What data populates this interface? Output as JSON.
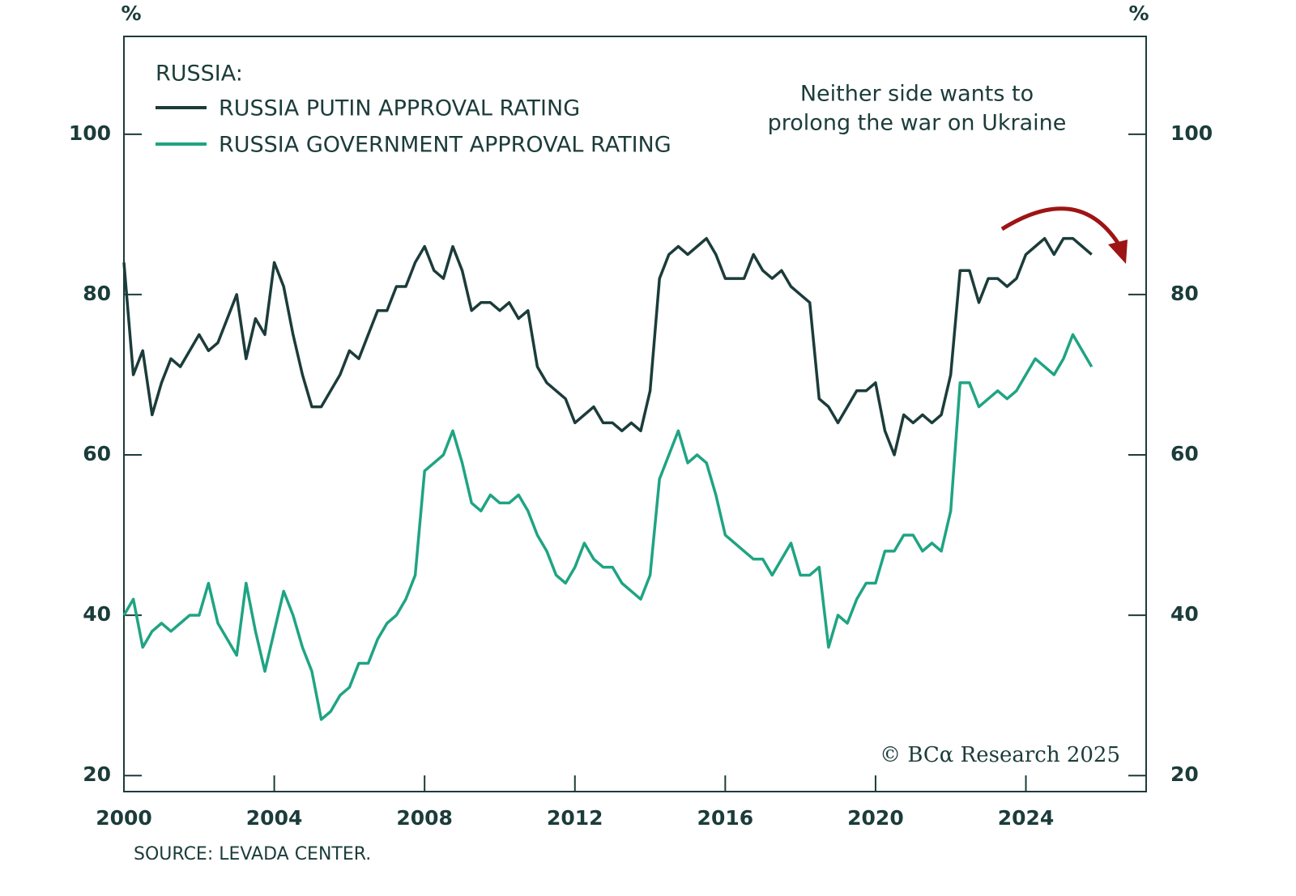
{
  "chart_data": {
    "type": "line",
    "ylabel": "%",
    "y2label": "%",
    "legend_title": "RUSSIA:",
    "annotation": [
      "Neither side wants to",
      "prolong the war on Ukraine"
    ],
    "annotation_color": "#9e1414",
    "watermark": "© BCα Research 2025",
    "source": "SOURCE: LEVADA CENTER.",
    "xlim": [
      2000,
      2027.2
    ],
    "xticks": [
      2000,
      2004,
      2008,
      2012,
      2016,
      2020,
      2024
    ],
    "ylim": [
      18,
      112.2
    ],
    "yticks": [
      20,
      40,
      60,
      80,
      100
    ],
    "y2lim": [
      18,
      112.2
    ],
    "y2ticks": [
      20,
      40,
      60,
      80,
      100
    ],
    "x": [
      2000,
      2000.25,
      2000.5,
      2000.75,
      2001,
      2001.25,
      2001.5,
      2001.75,
      2002,
      2002.25,
      2002.5,
      2002.75,
      2003,
      2003.25,
      2003.5,
      2003.75,
      2004,
      2004.25,
      2004.5,
      2004.75,
      2005,
      2005.25,
      2005.5,
      2005.75,
      2006,
      2006.25,
      2006.5,
      2006.75,
      2007,
      2007.25,
      2007.5,
      2007.75,
      2008,
      2008.25,
      2008.5,
      2008.75,
      2009,
      2009.25,
      2009.5,
      2009.75,
      2010,
      2010.25,
      2010.5,
      2010.75,
      2011,
      2011.25,
      2011.5,
      2011.75,
      2012,
      2012.25,
      2012.5,
      2012.75,
      2013,
      2013.25,
      2013.5,
      2013.75,
      2014,
      2014.25,
      2014.5,
      2014.75,
      2015,
      2015.25,
      2015.5,
      2015.75,
      2016,
      2016.25,
      2016.5,
      2016.75,
      2017,
      2017.25,
      2017.5,
      2017.75,
      2018,
      2018.25,
      2018.5,
      2018.75,
      2019,
      2019.25,
      2019.5,
      2019.75,
      2020,
      2020.25,
      2020.5,
      2020.75,
      2021,
      2021.25,
      2021.5,
      2021.75,
      2022,
      2022.25,
      2022.5,
      2022.75,
      2023,
      2023.25,
      2023.5,
      2023.75,
      2024,
      2024.25,
      2024.5,
      2024.75,
      2025,
      2025.25,
      2025.5,
      2025.75
    ],
    "series": [
      {
        "name": "RUSSIA PUTIN APPROVAL RATING",
        "color": "#1b3c3a",
        "values": [
          84,
          70,
          73,
          65,
          69,
          72,
          71,
          73,
          75,
          73,
          74,
          77,
          80,
          72,
          77,
          75,
          84,
          81,
          75,
          70,
          66,
          66,
          68,
          70,
          73,
          72,
          75,
          78,
          78,
          81,
          81,
          84,
          86,
          83,
          82,
          86,
          83,
          78,
          79,
          79,
          78,
          79,
          77,
          78,
          71,
          69,
          68,
          67,
          64,
          65,
          66,
          64,
          64,
          63,
          64,
          63,
          68,
          82,
          85,
          86,
          85,
          86,
          87,
          85,
          82,
          82,
          82,
          85,
          83,
          82,
          83,
          81,
          80,
          79,
          67,
          66,
          64,
          66,
          68,
          68,
          69,
          63,
          60,
          65,
          64,
          65,
          64,
          65,
          70,
          83,
          83,
          79,
          82,
          82,
          81,
          82,
          85,
          86,
          87,
          85,
          87,
          87,
          86,
          85
        ]
      },
      {
        "name": "RUSSIA GOVERNMENT APPROVAL RATING",
        "color": "#1fa483",
        "values": [
          40,
          42,
          36,
          38,
          39,
          38,
          39,
          40,
          40,
          44,
          39,
          37,
          35,
          44,
          38,
          33,
          38,
          43,
          40,
          36,
          33,
          27,
          28,
          30,
          31,
          34,
          34,
          37,
          39,
          40,
          42,
          45,
          58,
          59,
          60,
          63,
          59,
          54,
          53,
          55,
          54,
          54,
          55,
          53,
          50,
          48,
          45,
          44,
          46,
          49,
          47,
          46,
          46,
          44,
          43,
          42,
          45,
          57,
          60,
          63,
          59,
          60,
          59,
          55,
          50,
          49,
          48,
          47,
          47,
          45,
          47,
          49,
          45,
          45,
          46,
          36,
          40,
          39,
          42,
          44,
          44,
          48,
          48,
          50,
          50,
          48,
          49,
          48,
          53,
          69,
          69,
          66,
          67,
          68,
          67,
          68,
          70,
          72,
          71,
          70,
          72,
          75,
          73,
          71
        ]
      }
    ]
  }
}
